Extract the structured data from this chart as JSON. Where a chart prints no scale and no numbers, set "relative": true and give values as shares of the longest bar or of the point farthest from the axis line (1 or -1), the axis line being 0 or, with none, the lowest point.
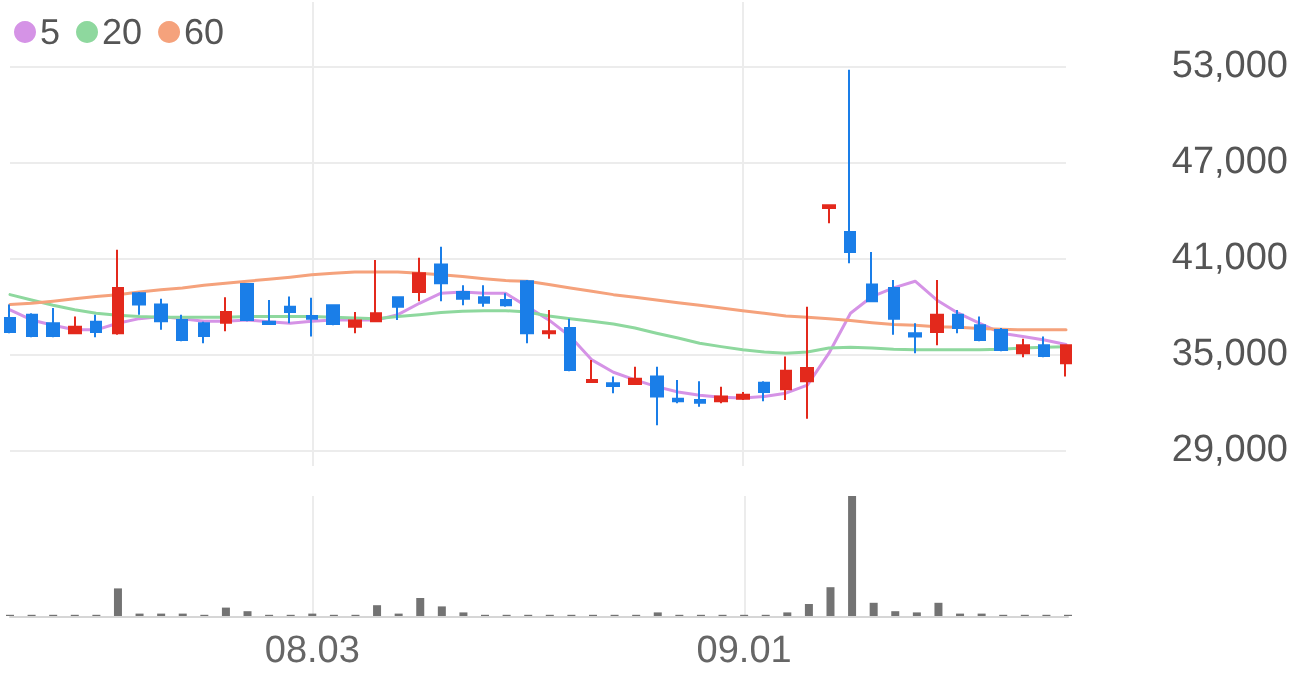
{
  "chart_data": [
    {
      "type": "candlestick",
      "categories": [
        null,
        null,
        null,
        null,
        null,
        null,
        null,
        null,
        null,
        null,
        null,
        null,
        null,
        null,
        "08.03",
        null,
        null,
        null,
        null,
        null,
        null,
        null,
        null,
        null,
        null,
        null,
        null,
        null,
        null,
        null,
        null,
        null,
        null,
        null,
        "09.01",
        null,
        null,
        null,
        null,
        null,
        null,
        null,
        null,
        null,
        null,
        null,
        null,
        null,
        null,
        null
      ],
      "ylim": [
        28000,
        57000
      ],
      "yticks": [
        {
          "value": 29000,
          "label": "29,000"
        },
        {
          "value": 35000,
          "label": "35,000"
        },
        {
          "value": 41000,
          "label": "41,000"
        },
        {
          "value": 47000,
          "label": "47,000"
        },
        {
          "value": 53000,
          "label": "53,000"
        }
      ],
      "grid": true,
      "legend": "top left",
      "tick_labels": "y",
      "marker": "none",
      "line_style": "solid",
      "series": [
        {
          "type": "candlestick",
          "ohlc": [
            [
              37250,
              38090,
              36300,
              36380
            ],
            [
              37460,
              37550,
              36050,
              36130
            ],
            [
              36920,
              37880,
              36050,
              36130
            ],
            [
              36300,
              37340,
              36300,
              36710
            ],
            [
              37010,
              37460,
              36050,
              36380
            ],
            [
              36300,
              41510,
              36210,
              39130
            ],
            [
              38800,
              38880,
              37460,
              38090
            ],
            [
              38090,
              38460,
              36510,
              37050
            ],
            [
              37130,
              37460,
              35800,
              35880
            ],
            [
              36920,
              37010,
              35670,
              36130
            ],
            [
              36960,
              38550,
              36420,
              37630
            ],
            [
              39380,
              39420,
              37050,
              37130
            ],
            [
              37010,
              38380,
              36840,
              36880
            ],
            [
              37960,
              38590,
              36920,
              37630
            ],
            [
              37380,
              38510,
              36090,
              37210
            ],
            [
              38050,
              38050,
              36800,
              36880
            ],
            [
              36710,
              37630,
              36300,
              37090
            ],
            [
              37050,
              40880,
              37050,
              37550
            ],
            [
              38550,
              38590,
              37130,
              37960
            ],
            [
              38880,
              41010,
              38300,
              40050
            ],
            [
              40590,
              41710,
              38300,
              39420
            ],
            [
              38880,
              39300,
              38050,
              38460
            ],
            [
              38550,
              39300,
              37960,
              38210
            ],
            [
              38380,
              38800,
              37960,
              38050
            ],
            [
              39550,
              39630,
              35670,
              36300
            ],
            [
              36300,
              37750,
              35960,
              36420
            ],
            [
              36630,
              37210,
              33920,
              34000
            ],
            [
              33250,
              34630,
              33250,
              33380
            ],
            [
              33170,
              33590,
              32550,
              33000
            ],
            [
              33130,
              34210,
              33130,
              33460
            ],
            [
              33590,
              34210,
              30550,
              32340
            ],
            [
              32210,
              33380,
              31920,
              32050
            ],
            [
              32130,
              33300,
              31710,
              31960
            ],
            [
              32050,
              32960,
              31920,
              32340
            ],
            [
              32210,
              32630,
              32130,
              32460
            ],
            [
              33210,
              33300,
              32050,
              32630
            ],
            [
              32800,
              34840,
              32130,
              33960
            ],
            [
              33300,
              37960,
              30960,
              34130
            ],
            [
              44130,
              44300,
              43170,
              44300
            ],
            [
              42630,
              52760,
              40670,
              41380
            ],
            [
              39340,
              41380,
              38300,
              38300
            ],
            [
              39130,
              39630,
              36210,
              37210
            ],
            [
              36300,
              36920,
              35050,
              36090
            ],
            [
              36380,
              39630,
              35550,
              37460
            ],
            [
              37460,
              37750,
              36300,
              36630
            ],
            [
              36800,
              37340,
              35800,
              35880
            ],
            [
              36500,
              36630,
              35170,
              35250
            ],
            [
              35050,
              35960,
              34800,
              35550
            ],
            [
              35550,
              36090,
              34800,
              34880
            ],
            [
              34420,
              35550,
              33590,
              35550
            ]
          ],
          "colors": [
            "#1a7ee8",
            "#1a7ee8",
            "#1a7ee8",
            "#e3291c",
            "#1a7ee8",
            "#e3291c",
            "#1a7ee8",
            "#1a7ee8",
            "#1a7ee8",
            "#1a7ee8",
            "#e3291c",
            "#1a7ee8",
            "#1a7ee8",
            "#1a7ee8",
            "#1a7ee8",
            "#1a7ee8",
            "#e3291c",
            "#e3291c",
            "#1a7ee8",
            "#e3291c",
            "#1a7ee8",
            "#1a7ee8",
            "#1a7ee8",
            "#1a7ee8",
            "#1a7ee8",
            "#e3291c",
            "#1a7ee8",
            "#e3291c",
            "#1a7ee8",
            "#e3291c",
            "#1a7ee8",
            "#1a7ee8",
            "#1a7ee8",
            "#e3291c",
            "#e3291c",
            "#1a7ee8",
            "#e3291c",
            "#e3291c",
            "#e3291c",
            "#1a7ee8",
            "#1a7ee8",
            "#1a7ee8",
            "#1a7ee8",
            "#e3291c",
            "#1a7ee8",
            "#1a7ee8",
            "#1a7ee8",
            "#e3291c",
            "#1a7ee8",
            "#e3291c"
          ]
        },
        {
          "type": "line",
          "name": "5",
          "color": "#d593e6",
          "values": [
            37760,
            37130,
            36800,
            36510,
            36510,
            36920,
            37210,
            37340,
            37210,
            37050,
            37050,
            37130,
            37010,
            36920,
            37050,
            37130,
            37130,
            37130,
            37460,
            38170,
            38800,
            38880,
            38800,
            38800,
            37960,
            37130,
            36090,
            34630,
            33860,
            33380,
            32960,
            32630,
            32420,
            32300,
            32250,
            32340,
            32550,
            33050,
            35050,
            37550,
            38590,
            39130,
            39550,
            38380,
            37550,
            36920,
            36300,
            36090,
            35880,
            35590
          ]
        },
        {
          "type": "line",
          "name": "20",
          "color": "#8ed89e",
          "values": [
            38710,
            38380,
            38050,
            37760,
            37550,
            37420,
            37340,
            37300,
            37300,
            37300,
            37300,
            37340,
            37340,
            37340,
            37340,
            37300,
            37250,
            37210,
            37340,
            37460,
            37590,
            37670,
            37710,
            37710,
            37630,
            37380,
            37210,
            37050,
            36880,
            36630,
            36300,
            36000,
            35670,
            35460,
            35260,
            35130,
            35050,
            35130,
            35380,
            35420,
            35380,
            35300,
            35260,
            35260,
            35260,
            35260,
            35300,
            35380,
            35420,
            35460
          ]
        },
        {
          "type": "line",
          "name": "60",
          "color": "#f5a27c",
          "values": [
            38090,
            38170,
            38300,
            38460,
            38590,
            38710,
            38880,
            39010,
            39130,
            39300,
            39420,
            39550,
            39670,
            39800,
            39960,
            40050,
            40130,
            40130,
            40130,
            40050,
            39960,
            39840,
            39710,
            39590,
            39550,
            39340,
            39130,
            38920,
            38710,
            38550,
            38380,
            38210,
            38050,
            37880,
            37710,
            37550,
            37380,
            37300,
            37210,
            37090,
            36960,
            36840,
            36800,
            36710,
            36670,
            36590,
            36550,
            36510,
            36510,
            36510
          ]
        }
      ]
    },
    {
      "type": "bar",
      "categories": [
        null,
        null,
        null,
        null,
        null,
        null,
        null,
        null,
        null,
        null,
        null,
        null,
        null,
        null,
        "08.03",
        null,
        null,
        null,
        null,
        null,
        null,
        null,
        null,
        null,
        null,
        null,
        null,
        null,
        null,
        null,
        null,
        null,
        null,
        null,
        "09.01",
        null,
        null,
        null,
        null,
        null,
        null,
        null,
        null,
        null,
        null,
        null,
        null,
        null,
        null,
        null
      ],
      "relative": true,
      "grid": "x",
      "tick_labels": "x",
      "color": "#737373",
      "values": [
        0.01,
        0.01,
        0.01,
        0.01,
        0.01,
        0.23,
        0.02,
        0.02,
        0.02,
        0.01,
        0.07,
        0.04,
        0.01,
        0.01,
        0.02,
        0.01,
        0.01,
        0.09,
        0.02,
        0.15,
        0.08,
        0.03,
        0.01,
        0.01,
        0.01,
        0.01,
        0.01,
        0.01,
        0.01,
        0.01,
        0.03,
        0.01,
        0.01,
        0.01,
        0.01,
        0.01,
        0.03,
        0.1,
        0.24,
        1,
        0.11,
        0.04,
        0.03,
        0.11,
        0.02,
        0.02,
        0.01,
        0.01,
        0.01,
        0.01
      ]
    }
  ]
}
